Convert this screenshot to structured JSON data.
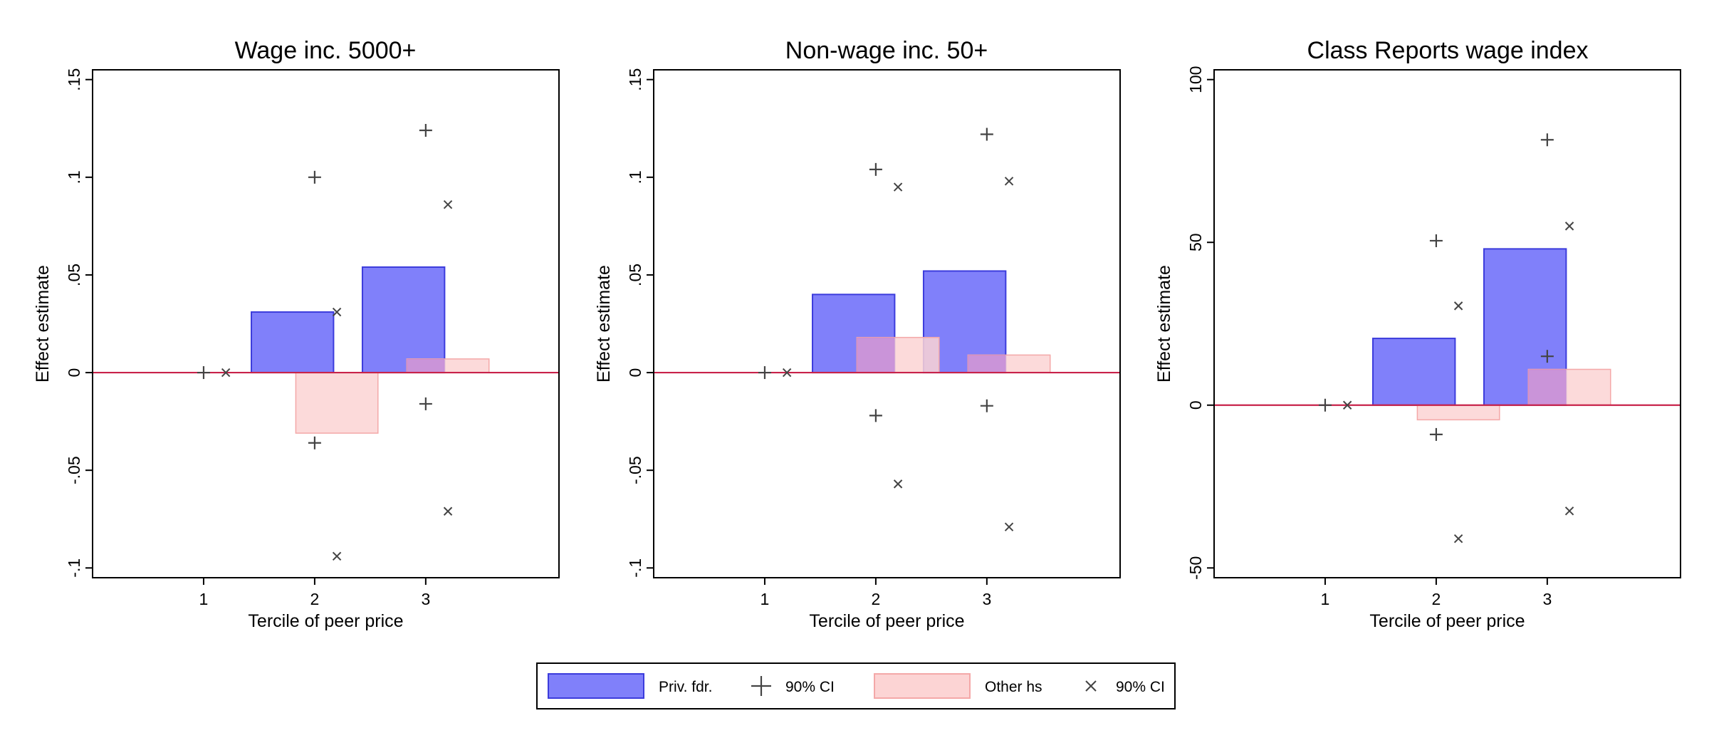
{
  "chart_data": [
    {
      "type": "bar",
      "title": "Wage inc. 5000+",
      "xlabel": "Tercile of peer price",
      "ylabel": "Effect estimate",
      "categories": [
        "1",
        "2",
        "3"
      ],
      "x_ticks": [
        "1",
        "2",
        "3"
      ],
      "y_ticks": [
        -0.1,
        -0.05,
        0,
        0.05,
        0.1,
        0.15
      ],
      "y_tick_labels": [
        "-.1",
        "-.05",
        "0",
        ".05",
        ".1",
        ".15"
      ],
      "xlim": [
        0,
        4.2
      ],
      "ylim": [
        -0.105,
        0.155
      ],
      "reference_line_y": 0,
      "grid": false,
      "series": [
        {
          "name": "Priv. fdr.",
          "values": [
            0,
            0.031,
            0.054
          ],
          "ci_low": [
            0,
            -0.036,
            -0.016
          ],
          "ci_high": [
            0,
            0.1,
            0.124
          ]
        },
        {
          "name": "Other hs",
          "values": [
            0,
            -0.031,
            0.007
          ],
          "ci_low": [
            0,
            -0.094,
            -0.071
          ],
          "ci_high": [
            0,
            0.031,
            0.086
          ]
        }
      ]
    },
    {
      "type": "bar",
      "title": "Non-wage inc. 50+",
      "xlabel": "Tercile of peer price",
      "ylabel": "Effect estimate",
      "categories": [
        "1",
        "2",
        "3"
      ],
      "x_ticks": [
        "1",
        "2",
        "3"
      ],
      "y_ticks": [
        -0.1,
        -0.05,
        0,
        0.05,
        0.1,
        0.15
      ],
      "y_tick_labels": [
        "-.1",
        "-.05",
        "0",
        ".05",
        ".1",
        ".15"
      ],
      "xlim": [
        0,
        4.2
      ],
      "ylim": [
        -0.105,
        0.155
      ],
      "reference_line_y": 0,
      "grid": false,
      "series": [
        {
          "name": "Priv. fdr.",
          "values": [
            0,
            0.04,
            0.052
          ],
          "ci_low": [
            0,
            -0.022,
            -0.017
          ],
          "ci_high": [
            0,
            0.104,
            0.122
          ]
        },
        {
          "name": "Other hs",
          "values": [
            0,
            0.018,
            0.009
          ],
          "ci_low": [
            0,
            -0.057,
            -0.079
          ],
          "ci_high": [
            0,
            0.095,
            0.098
          ]
        }
      ]
    },
    {
      "type": "bar",
      "title": "Class Reports wage index",
      "xlabel": "Tercile of peer price",
      "ylabel": "Effect estimate",
      "categories": [
        "1",
        "2",
        "3"
      ],
      "x_ticks": [
        "1",
        "2",
        "3"
      ],
      "y_ticks": [
        -50,
        0,
        50,
        100
      ],
      "y_tick_labels": [
        "-50",
        "0",
        "50",
        "100"
      ],
      "xlim": [
        0,
        4.2
      ],
      "ylim": [
        -53,
        103
      ],
      "reference_line_y": 0,
      "grid": false,
      "series": [
        {
          "name": "Priv. fdr.",
          "values": [
            0,
            20.5,
            48
          ],
          "ci_low": [
            0,
            -9,
            15
          ],
          "ci_high": [
            0,
            50.5,
            81.5
          ]
        },
        {
          "name": "Other hs",
          "values": [
            0,
            -4.5,
            11
          ],
          "ci_low": [
            0,
            -41,
            -32.5
          ],
          "ci_high": [
            0,
            30.5,
            55
          ]
        }
      ]
    }
  ],
  "legend": {
    "placement": "bottom",
    "items": [
      {
        "label": "Priv. fdr.",
        "kind": "bar",
        "color": "#8080fa",
        "edge": "#3c3cdc"
      },
      {
        "label": "90% CI",
        "kind": "plus"
      },
      {
        "label": "Other hs",
        "kind": "bar",
        "color": "#fcd4d4",
        "edge": "#f4a8a8"
      },
      {
        "label": "90% CI",
        "kind": "cross"
      }
    ]
  },
  "colors": {
    "priv_fill": "#8080fa",
    "priv_edge": "#3c3cdc",
    "other_fill": "#fcd4d4",
    "other_edge": "#f4a8a8",
    "other_overlap_fill": "#b06ad8",
    "zero_line": "#c8234a",
    "marker": "#444444"
  }
}
